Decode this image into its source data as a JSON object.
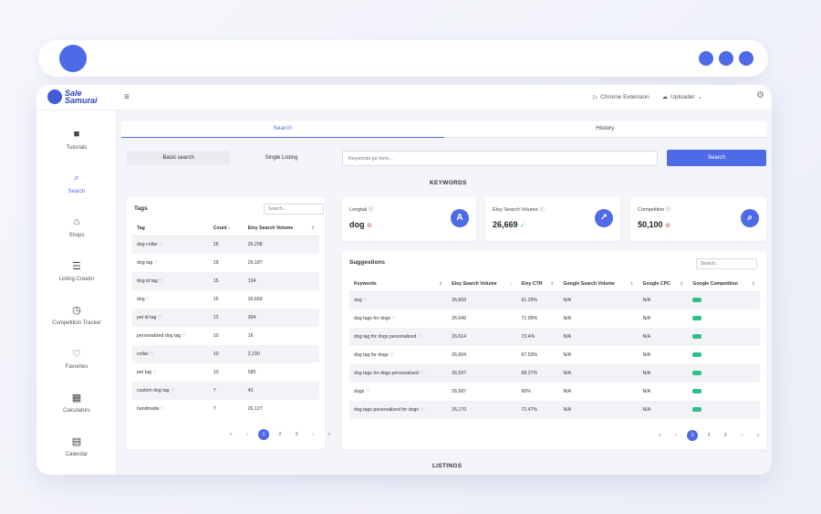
{
  "brand": {
    "line1": "Sale",
    "line2": "Samurai"
  },
  "header": {
    "chrome_extension": "Chrome Extension",
    "uploader": "Uploader"
  },
  "sidebar": {
    "items": [
      {
        "label": "Tutorials",
        "icon": "video-icon"
      },
      {
        "label": "Search",
        "icon": "search-icon"
      },
      {
        "label": "Shops",
        "icon": "shop-icon"
      },
      {
        "label": "Listing Creator",
        "icon": "listing-creator-icon"
      },
      {
        "label": "Competition Tracker",
        "icon": "timer-icon"
      },
      {
        "label": "Favorites",
        "icon": "heart-icon"
      },
      {
        "label": "Calculators",
        "icon": "calculator-icon"
      },
      {
        "label": "Calendar",
        "icon": "calendar-icon"
      }
    ]
  },
  "tabs": {
    "search": "Search",
    "history": "History"
  },
  "search_mode": {
    "basic": "Basic search",
    "single": "Single Listing"
  },
  "keyword_input": {
    "placeholder": "Keywords go here...",
    "button": "Search"
  },
  "sections": {
    "keywords": "KEYWORDS",
    "listings": "LISTINGS"
  },
  "tags": {
    "title": "Tags",
    "search_placeholder": "Search...",
    "headers": {
      "tag": "Tag",
      "count": "Count",
      "volume": "Etsy Search Volume"
    },
    "rows": [
      {
        "tag": "dog collar",
        "count": "25",
        "volume": "26,208"
      },
      {
        "tag": "dog tag",
        "count": "19",
        "volume": "26,187"
      },
      {
        "tag": "dog id tag",
        "count": "15",
        "volume": "134"
      },
      {
        "tag": "dog",
        "count": "15",
        "volume": "26,669"
      },
      {
        "tag": "pet id tag",
        "count": "12",
        "volume": "304"
      },
      {
        "tag": "personalized dog tag",
        "count": "10",
        "volume": "16"
      },
      {
        "tag": "collar",
        "count": "10",
        "volume": "2,230"
      },
      {
        "tag": "pet tag",
        "count": "10",
        "volume": "580"
      },
      {
        "tag": "custom dog tag",
        "count": "7",
        "volume": "40"
      },
      {
        "tag": "handmade",
        "count": "7",
        "volume": "26,127"
      }
    ],
    "pager": {
      "first": "«",
      "prev": "‹",
      "pages": [
        "1",
        "2",
        "3"
      ],
      "next": "›",
      "last": "»"
    }
  },
  "stats": {
    "longtail": {
      "label": "Longtail",
      "value": "dog",
      "icon_letter": "A"
    },
    "volume": {
      "label": "Etsy Search Volume",
      "value": "26,669"
    },
    "competition": {
      "label": "Competition",
      "value": "50,100"
    }
  },
  "suggestions": {
    "title": "Suggestions",
    "search_placeholder": "Search...",
    "headers": {
      "keywords": "Keywords",
      "volume": "Etsy Search Volume",
      "ctr": "Etsy CTR",
      "gvolume": "Google Search Volume",
      "cpc": "Google CPC",
      "gcomp": "Google Competition"
    },
    "rows": [
      {
        "kw": "dog",
        "volume": "26,669",
        "ctr": "61.25%",
        "gvolume": "N/A",
        "cpc": "N/A"
      },
      {
        "kw": "dog tags for dogs",
        "volume": "26,649",
        "ctr": "71.05%",
        "gvolume": "N/A",
        "cpc": "N/A"
      },
      {
        "kw": "dog tag for dogs personalized",
        "volume": "26,614",
        "ctr": "73.4%",
        "gvolume": "N/A",
        "cpc": "N/A"
      },
      {
        "kw": "dog tag for dogs",
        "volume": "26,604",
        "ctr": "67.53%",
        "gvolume": "N/A",
        "cpc": "N/A"
      },
      {
        "kw": "dog tags for dogs personalized",
        "volume": "26,597",
        "ctr": "68.27%",
        "gvolume": "N/A",
        "cpc": "N/A"
      },
      {
        "kw": "dogs",
        "volume": "26,587",
        "ctr": "66%",
        "gvolume": "N/A",
        "cpc": "N/A"
      },
      {
        "kw": "dog tags personalized for dogs",
        "volume": "26,170",
        "ctr": "72.47%",
        "gvolume": "N/A",
        "cpc": "N/A"
      }
    ],
    "pager": {
      "first": "«",
      "prev": "‹",
      "pages": [
        "1",
        "2",
        "3"
      ],
      "next": "›",
      "last": "»"
    }
  },
  "colors": {
    "accent": "#4f6ae6",
    "success": "#2fbf8a",
    "warn": "#e25c5c"
  }
}
